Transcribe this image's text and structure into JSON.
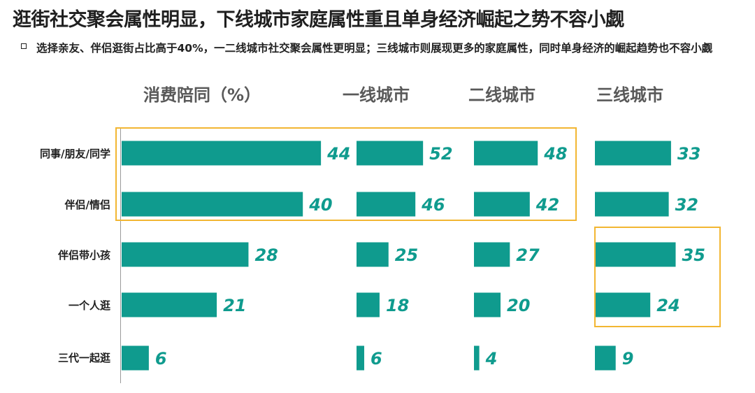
{
  "title": "逛街社交聚会属性明显，下线城市家庭属性重且单身经济崛起之势不容小觑",
  "subtitle": "选择亲友、伴侣逛街占比高于40%，一二线城市社交聚会属性更明显；三线城市则展现更多的家庭属性，同时单身经济的崛起趋势也不容小觑",
  "colors": {
    "bar": "#0f9b8e",
    "highlight": "#f2b632"
  },
  "chart_data": {
    "type": "bar",
    "orientation": "horizontal",
    "title": "消费陪同（%）",
    "categories": [
      "同事/朋友/同学",
      "伴侣/情侣",
      "伴侣带小孩",
      "一个人逛",
      "三代一起逛"
    ],
    "series": [
      {
        "name": "消费陪同（%）",
        "values": [
          44,
          40,
          28,
          21,
          6
        ]
      },
      {
        "name": "一线城市",
        "values": [
          52,
          46,
          25,
          18,
          6
        ]
      },
      {
        "name": "二线城市",
        "values": [
          48,
          42,
          27,
          20,
          4
        ]
      },
      {
        "name": "三线城市",
        "values": [
          33,
          32,
          35,
          24,
          9
        ]
      }
    ],
    "data_labels": true,
    "grid": false,
    "legend": "none"
  }
}
